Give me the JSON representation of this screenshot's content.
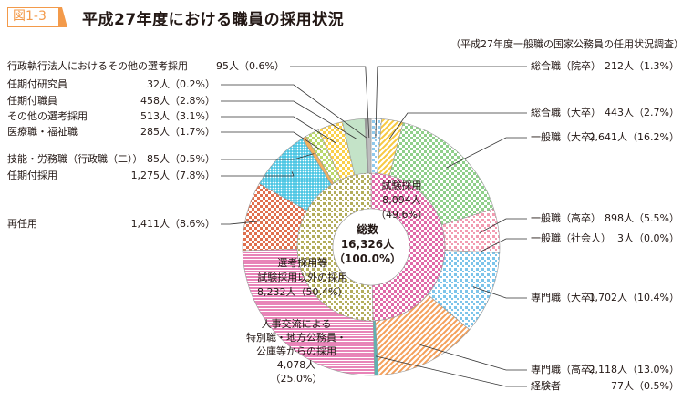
{
  "header": {
    "figure_label": "図1-3",
    "title": "平成27年度における職員の採用状況",
    "source": "（平成27年度一般職の国家公務員の任用状況調査）"
  },
  "chart_data": {
    "type": "pie",
    "subtype": "nested-donut",
    "center": {
      "label": "総数",
      "value": "16,326人",
      "pct": "（100.0%）"
    },
    "inner": [
      {
        "name": "試験採用",
        "value": 8094,
        "value_label": "8,094人",
        "pct": "（49.6%）",
        "color": "#e06aa8"
      },
      {
        "name": "選考採用等",
        "name2": "試験採用以外の採用",
        "value": 8232,
        "value_label": "8,232人（50.4%）",
        "color": "#b3ad5c"
      }
    ],
    "outer": [
      {
        "name": "総合職（院卒）",
        "value": 212,
        "label": "212人（1.3%）",
        "color": "#8fc9ec",
        "pattern": "dots"
      },
      {
        "name": "総合職（大卒）",
        "value": 443,
        "label": "443人（2.7%）",
        "color": "#f7c940",
        "pattern": "diag"
      },
      {
        "name": "一般職（大卒）",
        "value": 2641,
        "label": "2,641人（16.2%）",
        "color": "#8fcf8a",
        "pattern": "check"
      },
      {
        "name": "一般職（高卒）",
        "value": 898,
        "label": "898人（5.5%）",
        "color": "#f29bb0",
        "pattern": "dots"
      },
      {
        "name": "一般職（社会人）",
        "value": 3,
        "label": "3人（0.0%）",
        "color": "#999999",
        "pattern": "solid"
      },
      {
        "name": "専門職（大卒）",
        "value": 1702,
        "label": "1,702人（10.4%）",
        "color": "#7cc4ea",
        "pattern": "dots"
      },
      {
        "name": "専門職（高卒）",
        "value": 2118,
        "label": "2,118人（13.0%）",
        "color": "#f5a05a",
        "pattern": "diag"
      },
      {
        "name": "経験者",
        "value": 77,
        "label": "77人（0.5%）",
        "color": "#5fb3b3",
        "pattern": "solid"
      },
      {
        "name": "人事交流による特別職・地方公務員・公庫等からの採用",
        "value": 4078,
        "label": "4,078人（25.0%）",
        "color": "#e884b8",
        "pattern": "hstripe"
      },
      {
        "name": "再任用",
        "value": 1411,
        "label": "1,411人（8.6%）",
        "color": "#e0704f",
        "pattern": "check"
      },
      {
        "name": "任期付採用",
        "value": 1275,
        "label": "1,275人（7.8%）",
        "color": "#34bfe0",
        "pattern": "grid"
      },
      {
        "name": "技能・労務職（行政職（二））",
        "value": 85,
        "label": "85人（0.5%）",
        "color": "#f5b15c",
        "pattern": "solid"
      },
      {
        "name": "医療職・福祉職",
        "value": 285,
        "label": "285人（1.7%）",
        "color": "#b9d86a",
        "pattern": "check"
      },
      {
        "name": "その他の選考採用",
        "value": 513,
        "label": "513人（3.1%）",
        "color": "#f9cf4a",
        "pattern": "check"
      },
      {
        "name": "任期付職員",
        "value": 458,
        "label": "458人（2.8%）",
        "color": "#c4e3c8",
        "pattern": "solid"
      },
      {
        "name": "任期付研究員",
        "value": 32,
        "label": "32人（0.2%）",
        "color": "#9a9a9a",
        "pattern": "solid"
      },
      {
        "name": "行政執行法人におけるその他の選考採用",
        "value": 95,
        "label": "95人（0.6%）",
        "color": "#bdbdbd",
        "pattern": "solid"
      }
    ],
    "exchange_label": [
      "人事交流による",
      "特別職・地方公務員・",
      "公庫等からの採用",
      "4,078人",
      "（25.0%）"
    ]
  }
}
